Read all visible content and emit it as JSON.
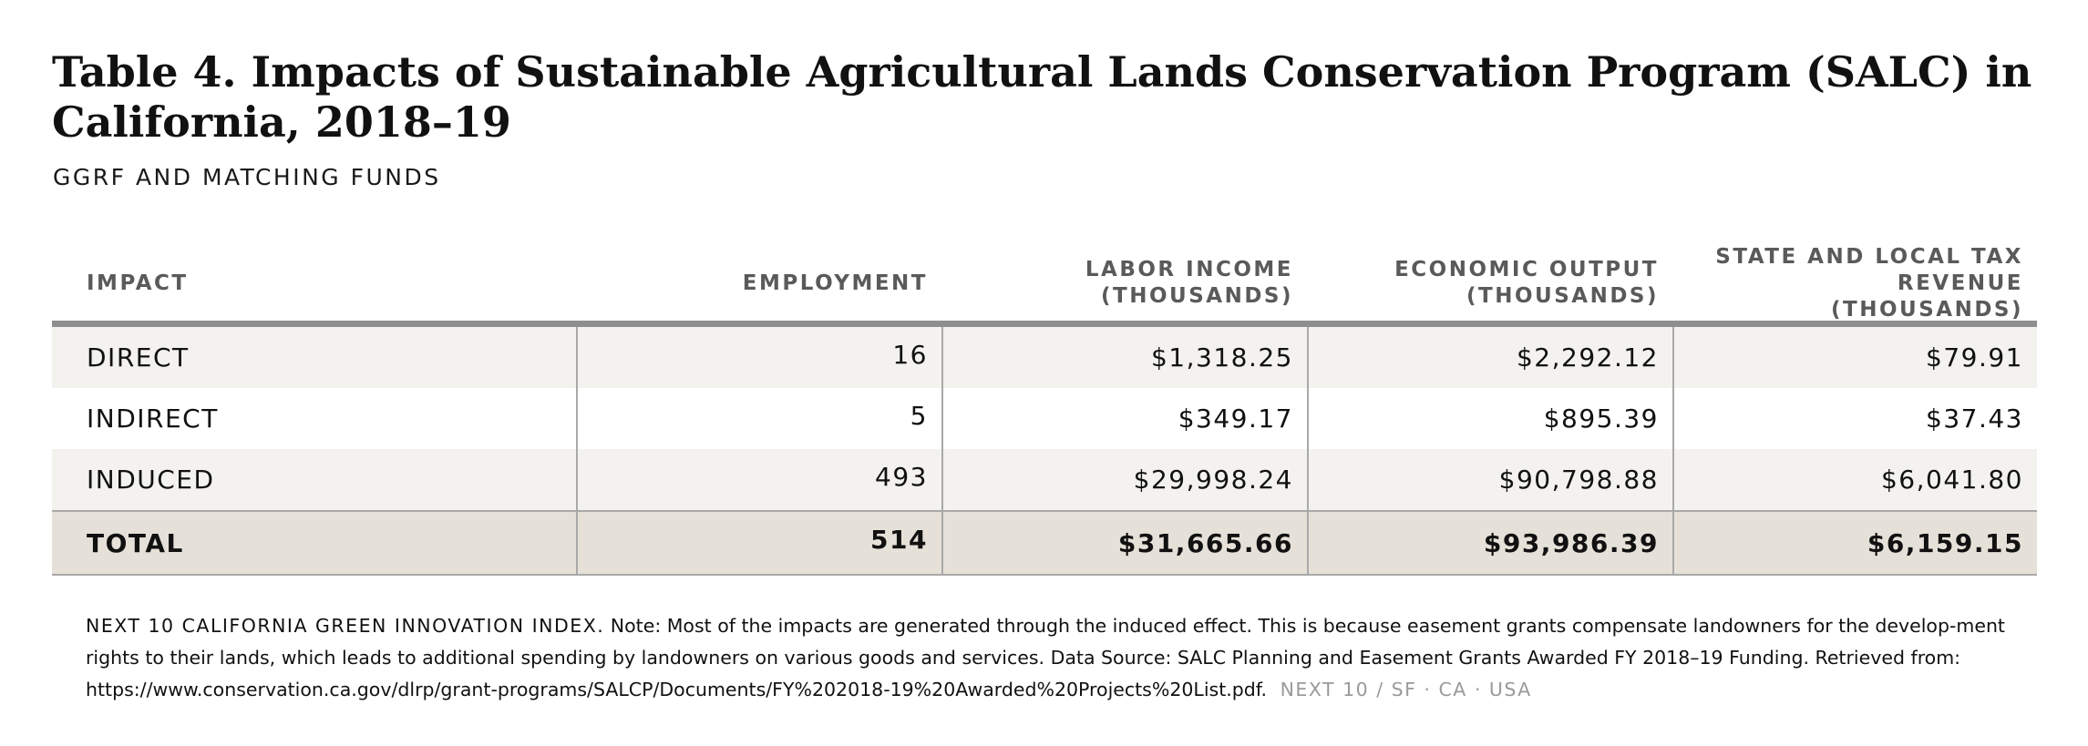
{
  "title": "Table 4. Impacts of Sustainable Agricultural Lands Conservation Program (SALC) in California, 2018–19",
  "subtitle": "GGRF AND MATCHING FUNDS",
  "table": {
    "headers": {
      "impact": "IMPACT",
      "employment": "EMPLOYMENT",
      "labor_income": "LABOR INCOME (THOUSANDS)",
      "economic_output": "ECONOMIC OUTPUT (THOUSANDS)",
      "tax_revenue": "STATE AND LOCAL TAX REVENUE (THOUSANDS)"
    },
    "rows": [
      {
        "impact": "DIRECT",
        "employment": "16",
        "labor_income": "$1,318.25",
        "economic_output": "$2,292.12",
        "tax_revenue": "$79.91"
      },
      {
        "impact": "INDIRECT",
        "employment": "5",
        "labor_income": "$349.17",
        "economic_output": "$895.39",
        "tax_revenue": "$37.43"
      },
      {
        "impact": "INDUCED",
        "employment": "493",
        "labor_income": "$29,998.24",
        "economic_output": "$90,798.88",
        "tax_revenue": "$6,041.80"
      }
    ],
    "total": {
      "impact": "TOTAL",
      "employment": "514",
      "labor_income": "$31,665.66",
      "economic_output": "$93,986.39",
      "tax_revenue": "$6,159.15"
    }
  },
  "footnote": {
    "source_label": "NEXT 10 CALIFORNIA GREEN INNOVATION INDEX.",
    "text": "Note: Most of the impacts are generated through the induced effect. This is because easement grants compensate landowners for the develop-ment rights to their lands, which leads to additional spending by landowners on various goods and services. Data Source: SALC Planning and Easement Grants Awarded FY 2018–19 Funding. Retrieved from: https://www.conservation.ca.gov/dlrp/grant-programs/SALCP/Documents/FY%202018-19%20Awarded%20Projects%20List.pdf.",
    "brand": "NEXT 10 / SF · CA · USA"
  }
}
